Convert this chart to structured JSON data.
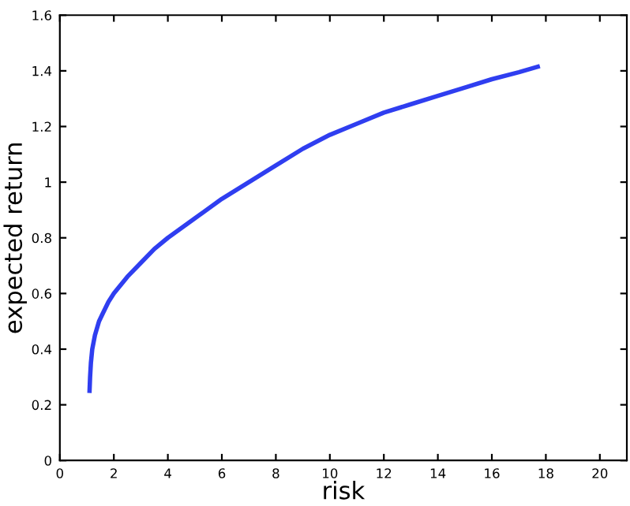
{
  "chart_data": {
    "type": "line",
    "xlabel": "risk",
    "ylabel": "expected return",
    "x": [
      1.1,
      1.12,
      1.15,
      1.2,
      1.3,
      1.45,
      1.6,
      1.8,
      2,
      2.5,
      3,
      3.5,
      4,
      5,
      6,
      7,
      8,
      9,
      10,
      11,
      12,
      13,
      14,
      15,
      16,
      17,
      17.7
    ],
    "series": [
      {
        "color": "#2f3ef0",
        "values": [
          0.25,
          0.3,
          0.35,
          0.4,
          0.45,
          0.5,
          0.53,
          0.57,
          0.6,
          0.66,
          0.71,
          0.76,
          0.8,
          0.87,
          0.94,
          1.0,
          1.06,
          1.12,
          1.17,
          1.21,
          1.25,
          1.28,
          1.31,
          1.34,
          1.37,
          1.395,
          1.415
        ]
      }
    ],
    "xlim": [
      0,
      21
    ],
    "ylim": [
      0,
      1.6
    ],
    "xticks": [
      0,
      2,
      4,
      6,
      8,
      10,
      12,
      14,
      16,
      18,
      20
    ],
    "yticks": [
      0,
      0.2,
      0.4,
      0.6,
      0.8,
      1,
      1.2,
      1.4,
      1.6
    ],
    "grid": false,
    "legend": false,
    "marker": "none",
    "line_style": "solid"
  }
}
